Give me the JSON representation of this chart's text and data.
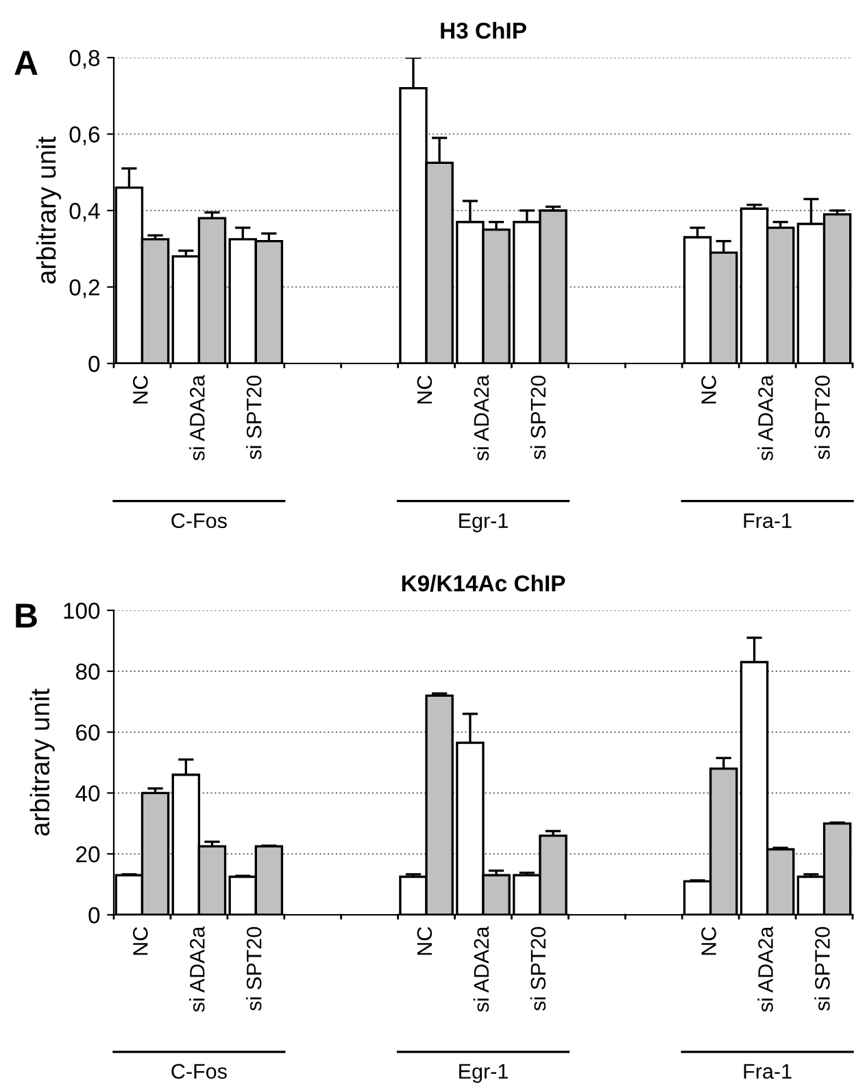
{
  "chart_data": [
    {
      "type": "bar",
      "title": "H3 ChIP",
      "ylabel": "arbitrary unit",
      "categories": [
        "NC",
        "si ADA2a",
        "si SPT20",
        null,
        null,
        "NC",
        "si ADA2a",
        "si SPT20",
        null,
        null,
        "NC",
        "si ADA2a",
        "si SPT20"
      ],
      "series": [
        {
          "color": "#ffffff",
          "values": [
            0.46,
            0.28,
            0.325,
            null,
            null,
            0.72,
            0.37,
            0.37,
            null,
            null,
            0.33,
            0.405,
            0.365
          ],
          "errors": [
            0.05,
            0.015,
            0.03,
            null,
            null,
            0.08,
            0.055,
            0.03,
            null,
            null,
            0.025,
            0.01,
            0.065
          ]
        },
        {
          "color": "#c0c0c0",
          "values": [
            0.325,
            0.38,
            0.32,
            null,
            null,
            0.525,
            0.35,
            0.4,
            null,
            null,
            0.29,
            0.355,
            0.39
          ],
          "errors": [
            0.01,
            0.015,
            0.02,
            null,
            null,
            0.065,
            0.02,
            0.01,
            null,
            null,
            0.03,
            0.015,
            0.01
          ]
        }
      ],
      "ylim": [
        0,
        0.8
      ],
      "yticks": [
        0,
        {
          "value": 0.2,
          "label": "0,2"
        },
        {
          "value": 0.4,
          "label": "0,4"
        },
        {
          "value": 0.6,
          "label": "0,6"
        },
        {
          "value": 0.8,
          "label": "0,8"
        }
      ],
      "grid": "y",
      "legend": false,
      "annotations": [
        "A",
        "C-Fos",
        "Egr-1",
        "Fra-1"
      ]
    },
    {
      "type": "bar",
      "title": "K9/K14Ac ChIP",
      "ylabel": "arbitrary unit",
      "categories": [
        "NC",
        "si ADA2a",
        "si SPT20",
        null,
        null,
        "NC",
        "si ADA2a",
        "si SPT20",
        null,
        null,
        "NC",
        "si ADA2a",
        "si SPT20"
      ],
      "series": [
        {
          "color": "#ffffff",
          "values": [
            13,
            46,
            12.5,
            null,
            null,
            12.5,
            56.5,
            13,
            null,
            null,
            11,
            83,
            12.5
          ],
          "errors": [
            0.3,
            5,
            0.3,
            null,
            null,
            0.8,
            9.5,
            0.8,
            null,
            null,
            0.3,
            8,
            0.8
          ]
        },
        {
          "color": "#c0c0c0",
          "values": [
            40,
            22.5,
            22.5,
            null,
            null,
            72,
            13,
            26,
            null,
            null,
            48,
            21.5,
            30
          ],
          "errors": [
            1.5,
            1.5,
            0.2,
            null,
            null,
            0.7,
            1.5,
            1.5,
            null,
            null,
            3.5,
            0.5,
            0.3
          ]
        }
      ],
      "ylim": [
        0,
        100
      ],
      "yticks": [
        0,
        20,
        40,
        60,
        80,
        100
      ],
      "grid": "y",
      "legend": false,
      "annotations": [
        "B",
        "C-Fos",
        "Egr-1",
        "Fra-1"
      ]
    }
  ]
}
